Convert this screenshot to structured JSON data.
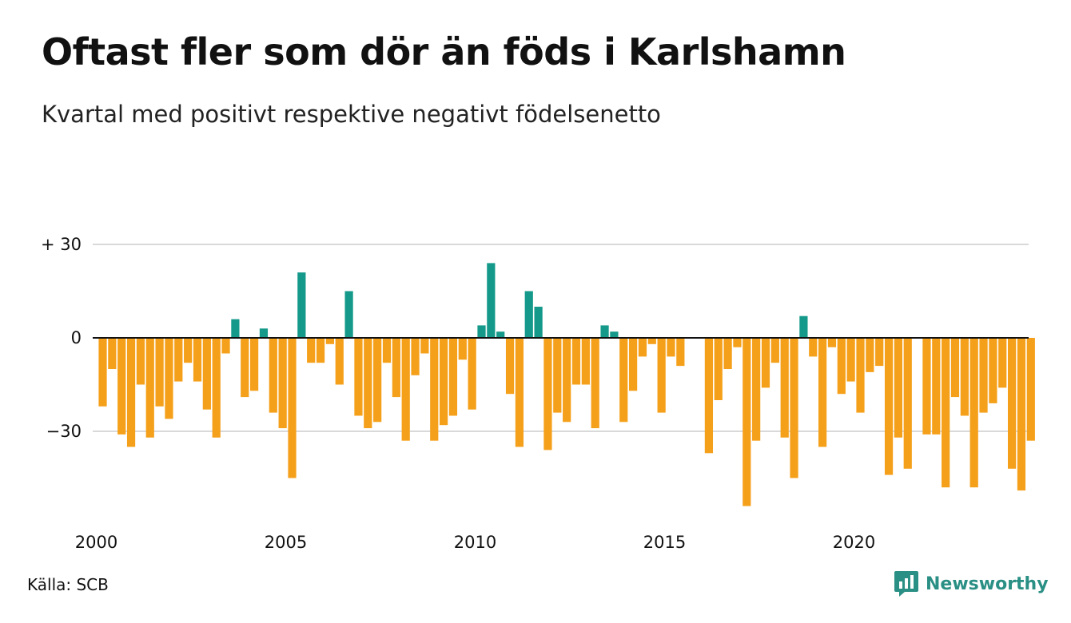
{
  "header": {
    "title": "Oftast fler som dör än föds i Karlshamn",
    "subtitle": "Kvartal med positivt respektive negativt födelsenetto"
  },
  "footer": {
    "source": "Källa: SCB",
    "brand": "Newsworthy",
    "brand_icon": "newsworthy-logo-icon"
  },
  "colors": {
    "positive": "#14998a",
    "negative": "#f5a01a",
    "grid": "#d9d9d9",
    "zero_line": "#111111",
    "brand": "#2a8f84"
  },
  "chart_data": {
    "type": "bar",
    "title": "Oftast fler som dör än föds i Karlshamn",
    "subtitle": "Kvartal med positivt respektive negativt födelsenetto",
    "xlabel": "",
    "ylabel": "",
    "ylim": [
      -55,
      30
    ],
    "y_ticks": [
      30,
      0,
      -30
    ],
    "y_tick_labels": [
      "+ 30",
      "0",
      "−30"
    ],
    "x_tick_labels": [
      "2000",
      "2005",
      "2010",
      "2015",
      "2020"
    ],
    "x_tick_years": [
      2000,
      2005,
      2010,
      2015,
      2020
    ],
    "grid": true,
    "legend": "none",
    "start": "2000 Q1",
    "frequency": "quarterly",
    "values": [
      -22,
      -10,
      -31,
      -35,
      -15,
      -32,
      -22,
      -26,
      -14,
      -8,
      -14,
      -23,
      -32,
      -5,
      6,
      -19,
      -17,
      3,
      -24,
      -29,
      -45,
      21,
      -8,
      -8,
      -2,
      -15,
      15,
      -25,
      -29,
      -27,
      -8,
      -19,
      -33,
      -12,
      -5,
      -33,
      -28,
      -25,
      -7,
      -23,
      4,
      24,
      2,
      -18,
      -35,
      15,
      10,
      -36,
      -24,
      -27,
      -15,
      -15,
      -29,
      4,
      2,
      -27,
      -17,
      -6,
      -2,
      -24,
      -6,
      -9,
      0,
      0,
      -37,
      -20,
      -10,
      -3,
      -54,
      -33,
      -16,
      -8,
      -32,
      -45,
      7,
      -6,
      -35,
      -3,
      -18,
      -14,
      -24,
      -11,
      -9,
      -44,
      -32,
      -42,
      0,
      -31,
      -31,
      -48,
      -19,
      -25,
      -48,
      -24,
      -21,
      -16,
      -42,
      -49,
      -33
    ]
  }
}
